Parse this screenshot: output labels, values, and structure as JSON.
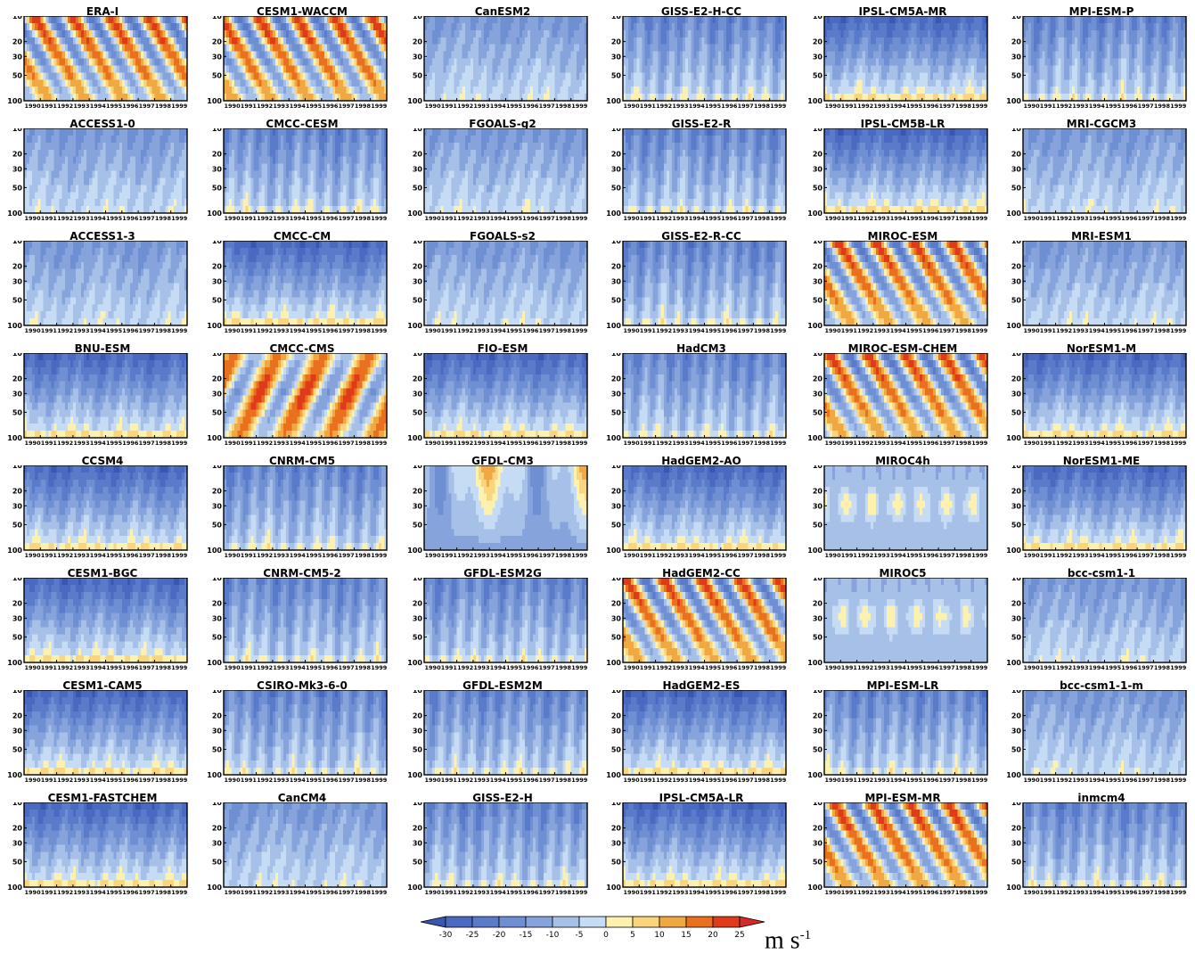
{
  "chart_data": {
    "type": "heatmap",
    "description_quantity": "zonal wind time-height section",
    "panels": [
      {
        "title": "ERA-I",
        "pattern": "strong"
      },
      {
        "title": "CESM1-WACCM",
        "pattern": "strong"
      },
      {
        "title": "CanESM2",
        "pattern": "weak_east"
      },
      {
        "title": "GISS-E2-H-CC",
        "pattern": "mixed"
      },
      {
        "title": "IPSL-CM5A-MR",
        "pattern": "layered"
      },
      {
        "title": "MPI-ESM-P",
        "pattern": "mixed"
      },
      {
        "title": "ACCESS1-0",
        "pattern": "weak_east"
      },
      {
        "title": "CMCC-CESM",
        "pattern": "mixed"
      },
      {
        "title": "FGOALS-g2",
        "pattern": "weak_east"
      },
      {
        "title": "GISS-E2-R",
        "pattern": "mixed"
      },
      {
        "title": "IPSL-CM5B-LR",
        "pattern": "layered"
      },
      {
        "title": "MRI-CGCM3",
        "pattern": "weak_east"
      },
      {
        "title": "ACCESS1-3",
        "pattern": "weak_east"
      },
      {
        "title": "CMCC-CM",
        "pattern": "layered"
      },
      {
        "title": "FGOALS-s2",
        "pattern": "weak_east"
      },
      {
        "title": "GISS-E2-R-CC",
        "pattern": "mixed"
      },
      {
        "title": "MIROC-ESM",
        "pattern": "strong"
      },
      {
        "title": "MRI-ESM1",
        "pattern": "weak_east"
      },
      {
        "title": "BNU-ESM",
        "pattern": "layered"
      },
      {
        "title": "CMCC-CMS",
        "pattern": "strong_up"
      },
      {
        "title": "FIO-ESM",
        "pattern": "layered"
      },
      {
        "title": "HadCM3",
        "pattern": "mixed"
      },
      {
        "title": "MIROC-ESM-CHEM",
        "pattern": "strong"
      },
      {
        "title": "NorESM1-M",
        "pattern": "layered"
      },
      {
        "title": "CCSM4",
        "pattern": "layered"
      },
      {
        "title": "CNRM-CM5",
        "pattern": "mixed"
      },
      {
        "title": "GFDL-CM3",
        "pattern": "west_top"
      },
      {
        "title": "HadGEM2-AO",
        "pattern": "layered"
      },
      {
        "title": "MIROC4h",
        "pattern": "weak_west"
      },
      {
        "title": "NorESM1-ME",
        "pattern": "layered"
      },
      {
        "title": "CESM1-BGC",
        "pattern": "layered"
      },
      {
        "title": "CNRM-CM5-2",
        "pattern": "mixed"
      },
      {
        "title": "GFDL-ESM2G",
        "pattern": "mixed"
      },
      {
        "title": "HadGEM2-CC",
        "pattern": "strong"
      },
      {
        "title": "MIROC5",
        "pattern": "weak_west"
      },
      {
        "title": "bcc-csm1-1",
        "pattern": "weak_east"
      },
      {
        "title": "CESM1-CAM5",
        "pattern": "layered"
      },
      {
        "title": "CSIRO-Mk3-6-0",
        "pattern": "mixed"
      },
      {
        "title": "GFDL-ESM2M",
        "pattern": "mixed"
      },
      {
        "title": "HadGEM2-ES",
        "pattern": "layered"
      },
      {
        "title": "MPI-ESM-LR",
        "pattern": "mixed"
      },
      {
        "title": "bcc-csm1-1-m",
        "pattern": "weak_east"
      },
      {
        "title": "CESM1-FASTCHEM",
        "pattern": "layered"
      },
      {
        "title": "CanCM4",
        "pattern": "weak_east"
      },
      {
        "title": "GISS-E2-H",
        "pattern": "mixed"
      },
      {
        "title": "IPSL-CM5A-LR",
        "pattern": "layered"
      },
      {
        "title": "MPI-ESM-MR",
        "pattern": "strong"
      },
      {
        "title": "inmcm4",
        "pattern": "mixed"
      }
    ],
    "y_ticks": [
      "10",
      "20",
      "30",
      "50",
      "100"
    ],
    "x_ticks": [
      "1990",
      "1991",
      "1992",
      "1993",
      "1994",
      "1995",
      "1996",
      "1997",
      "1998",
      "1999"
    ],
    "ylim": [
      100,
      10
    ],
    "xlim": [
      1990,
      2000
    ],
    "colorbar": {
      "ticks": [
        "-30",
        "-25",
        "-20",
        "-15",
        "-10",
        "-5",
        "0",
        "5",
        "10",
        "15",
        "20",
        "25"
      ],
      "levels": [
        -30,
        -25,
        -20,
        -15,
        -10,
        -5,
        0,
        5,
        10,
        15,
        20,
        25
      ],
      "colors": [
        "#3a56b0",
        "#4a69c0",
        "#5a7bca",
        "#6e8fd1",
        "#86a3dc",
        "#a6c0e8",
        "#c6dcf5",
        "#fdf1b0",
        "#f8d57e",
        "#f0a843",
        "#e8701f",
        "#df3b1a",
        "#d62a2a"
      ],
      "units_main": "m s",
      "units_sup": "-1"
    }
  }
}
